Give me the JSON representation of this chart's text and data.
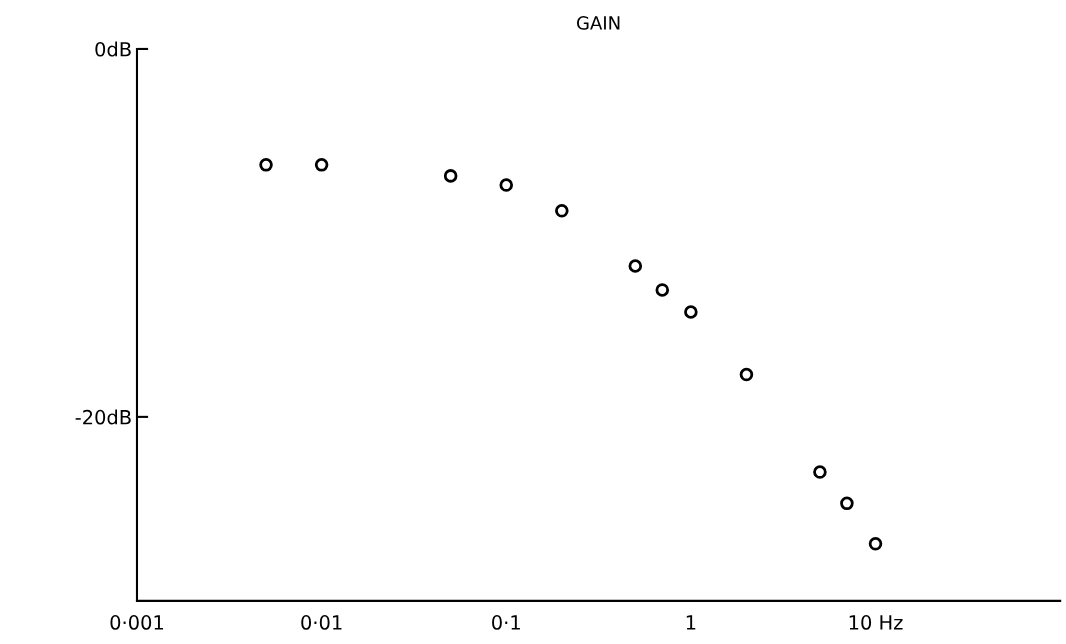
{
  "chart_data": {
    "type": "scatter",
    "title": "GAIN",
    "log": "x",
    "marker": "circle",
    "grid": false,
    "x": [
      0.005,
      0.01,
      0.05,
      0.1,
      0.2,
      0.5,
      0.7,
      1,
      2,
      5,
      7,
      10
    ],
    "series": [
      {
        "color": "#000000",
        "values": [
          -6.3,
          -6.3,
          -6.9,
          -7.4,
          -8.8,
          -11.8,
          -13.1,
          -14.3,
          -17.7,
          -23.0,
          -24.7,
          -26.9
        ]
      }
    ],
    "xlim": [
      0.001,
      100
    ],
    "ylim": [
      -30,
      0
    ],
    "xticks": [
      {
        "value": 0.001,
        "label": "0·001"
      },
      {
        "value": 0.01,
        "label": "0·01"
      },
      {
        "value": 0.1,
        "label": "0·1"
      },
      {
        "value": 1,
        "label": "1"
      },
      {
        "value": 10,
        "label": "10 Hz"
      }
    ],
    "yticks": [
      {
        "value": 0,
        "label": "0dB"
      },
      {
        "value": -20,
        "label": "-20dB"
      }
    ]
  }
}
